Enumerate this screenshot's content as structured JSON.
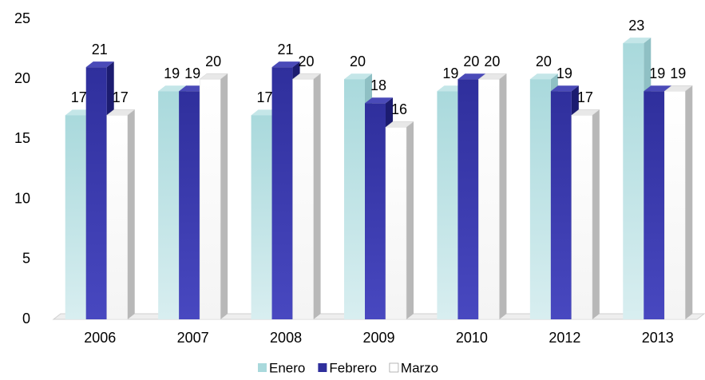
{
  "chart_data": {
    "type": "bar3d",
    "categories": [
      "2006",
      "2007",
      "2008",
      "2009",
      "2010",
      "2012",
      "2013"
    ],
    "series": [
      {
        "name": "Enero",
        "color": "#a9d9dc",
        "values": [
          17,
          19,
          17,
          20,
          19,
          20,
          23
        ]
      },
      {
        "name": "Febrero",
        "color": "#2f2f9c",
        "values": [
          21,
          19,
          21,
          18,
          20,
          19,
          19
        ]
      },
      {
        "name": "Marzo",
        "color": "#ffffff",
        "values": [
          17,
          20,
          20,
          16,
          20,
          17,
          19
        ]
      }
    ],
    "ylim": [
      0,
      25
    ],
    "yticks": [
      0,
      5,
      10,
      15,
      20,
      25
    ],
    "legend": "bottom"
  }
}
